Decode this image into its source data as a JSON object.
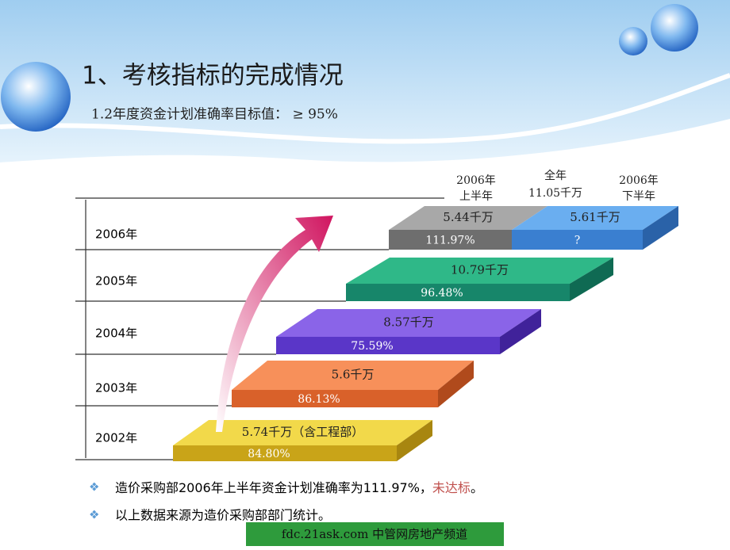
{
  "header": {
    "title": "1、考核指标的完成情况",
    "subtitle": "1.2年度资金计划准确率目标值：  ≥ 95%"
  },
  "columns": [
    {
      "line1": "2006年",
      "line2": "上半年"
    },
    {
      "line1": "全年",
      "line2": "11.05千万"
    },
    {
      "line1": "2006年",
      "line2": "下半年"
    }
  ],
  "years": [
    "2006年",
    "2005年",
    "2004年",
    "2003年",
    "2002年"
  ],
  "steps": [
    {
      "amount": "5.74千万（含工程部）",
      "rate": "84.80%"
    },
    {
      "amount": "5.6千万",
      "rate": "86.13%"
    },
    {
      "amount": "8.57千万",
      "rate": "75.59%"
    },
    {
      "amount": "10.79千万",
      "rate": "96.48%"
    },
    {
      "amount": "5.44千万",
      "rate": "111.97%"
    },
    {
      "amount": "5.61千万",
      "rate": "?"
    }
  ],
  "bullets": [
    {
      "text": "造价采购部2006年上半年资金计划准确率为111.97%，",
      "highlight": "未达标",
      "end": "。"
    },
    {
      "text": "以上数据来源为造价采购部部门统计。"
    }
  ],
  "footer": "fdc.21ask.com 中管网房地产频道"
}
